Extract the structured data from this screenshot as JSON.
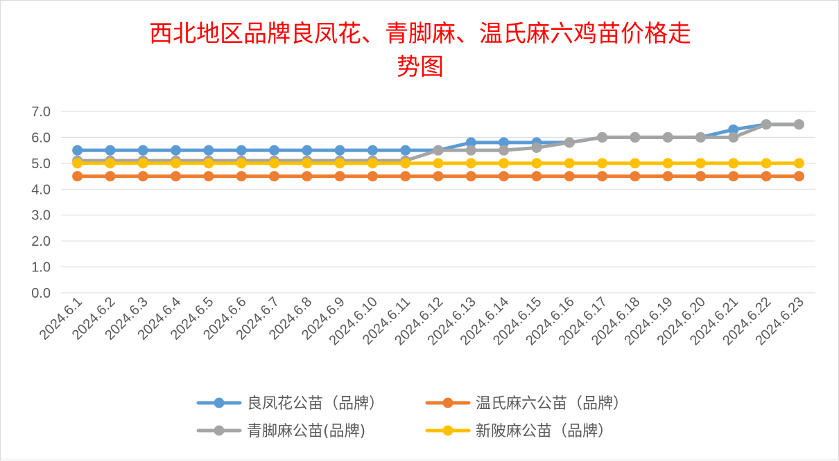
{
  "chart_data": {
    "type": "line",
    "title_line1": "西北地区品牌良凤花、青脚麻、温氏麻六鸡苗价格走",
    "title_line2": "势图",
    "categories": [
      "2024.6.1",
      "2024.6.2",
      "2024.6.3",
      "2024.6.4",
      "2024.6.5",
      "2024.6.6",
      "2024.6.7",
      "2024.6.8",
      "2024.6.9",
      "2024.6.10",
      "2024.6.11",
      "2024.6.12",
      "2024.6.13",
      "2024.6.14",
      "2024.6.15",
      "2024.6.16",
      "2024.6.17",
      "2024.6.18",
      "2024.6.19",
      "2024.6.20",
      "2024.6.21",
      "2024.6.22",
      "2024.6.23"
    ],
    "y_ticks": [
      "0.0",
      "1.0",
      "2.0",
      "3.0",
      "4.0",
      "5.0",
      "6.0",
      "7.0"
    ],
    "ylim": [
      0,
      7
    ],
    "grid": true,
    "legend_position": "bottom",
    "series": [
      {
        "name": "良凤花公苗（品牌）",
        "color": "#5b9bd5",
        "values": [
          5.5,
          5.5,
          5.5,
          5.5,
          5.5,
          5.5,
          5.5,
          5.5,
          5.5,
          5.5,
          5.5,
          5.5,
          5.8,
          5.8,
          5.8,
          5.8,
          6.0,
          6.0,
          6.0,
          6.0,
          6.3,
          6.5,
          6.5
        ]
      },
      {
        "name": "温氏麻六公苗（品牌）",
        "color": "#ed7d31",
        "values": [
          4.5,
          4.5,
          4.5,
          4.5,
          4.5,
          4.5,
          4.5,
          4.5,
          4.5,
          4.5,
          4.5,
          4.5,
          4.5,
          4.5,
          4.5,
          4.5,
          4.5,
          4.5,
          4.5,
          4.5,
          4.5,
          4.5,
          4.5
        ]
      },
      {
        "name": "青脚麻公苗(品牌)",
        "color": "#a5a5a5",
        "values": [
          5.1,
          5.1,
          5.1,
          5.1,
          5.1,
          5.1,
          5.1,
          5.1,
          5.1,
          5.1,
          5.1,
          5.5,
          5.5,
          5.5,
          5.6,
          5.8,
          6.0,
          6.0,
          6.0,
          6.0,
          6.0,
          6.5,
          6.5
        ]
      },
      {
        "name": "新陂麻公苗（品牌）",
        "color": "#ffc000",
        "values": [
          5.0,
          5.0,
          5.0,
          5.0,
          5.0,
          5.0,
          5.0,
          5.0,
          5.0,
          5.0,
          5.0,
          5.0,
          5.0,
          5.0,
          5.0,
          5.0,
          5.0,
          5.0,
          5.0,
          5.0,
          5.0,
          5.0,
          5.0
        ]
      }
    ]
  }
}
